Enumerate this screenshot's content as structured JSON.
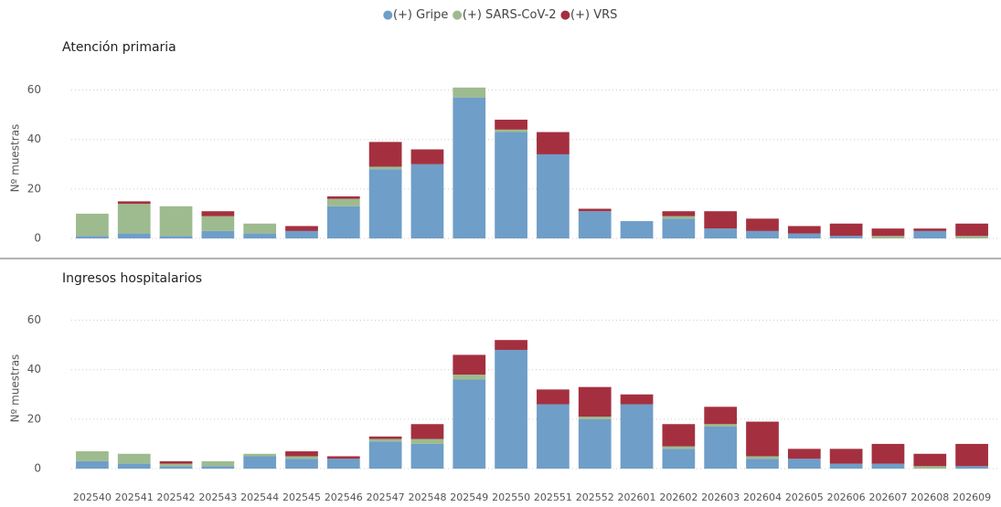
{
  "chart_data": [
    {
      "type": "bar",
      "stacked": true,
      "title": "Atención primaria",
      "ylabel": "Nº muestras",
      "ylim": [
        0,
        65
      ],
      "yticks": [
        0,
        20,
        40,
        60
      ],
      "grid": true,
      "series": [
        {
          "name": "(+) Gripe",
          "color": "#6f9ec8",
          "values": [
            1,
            2,
            1,
            3,
            2,
            3,
            13,
            28,
            30,
            57,
            43,
            34,
            11,
            7,
            8,
            4,
            3,
            2,
            1,
            0,
            3,
            0
          ]
        },
        {
          "name": "(+) SARS-CoV-2",
          "color": "#9dbb8e",
          "values": [
            9,
            12,
            12,
            6,
            4,
            0,
            3,
            1,
            0,
            4,
            1,
            0,
            0,
            0,
            1,
            0,
            0,
            0,
            0,
            1,
            0,
            1
          ]
        },
        {
          "name": "(+) VRS",
          "color": "#a4303f",
          "values": [
            0,
            1,
            0,
            2,
            0,
            2,
            1,
            10,
            6,
            0,
            4,
            9,
            1,
            0,
            2,
            7,
            5,
            3,
            5,
            3,
            1,
            5
          ]
        }
      ]
    },
    {
      "type": "bar",
      "stacked": true,
      "title": "Ingresos hospitalarios",
      "ylabel": "Nº muestras",
      "ylim": [
        0,
        65
      ],
      "yticks": [
        0,
        20,
        40,
        60
      ],
      "grid": true,
      "categories": [
        "202540",
        "202541",
        "202542",
        "202543",
        "202544",
        "202545",
        "202546",
        "202547",
        "202548",
        "202549",
        "202550",
        "202551",
        "202552",
        "202601",
        "202602",
        "202603",
        "202604",
        "202605",
        "202606",
        "202607",
        "202608",
        "202609"
      ],
      "series": [
        {
          "color": "#6f9ec8",
          "values": [
            3,
            2,
            1,
            1,
            5,
            4,
            4,
            11,
            10,
            36,
            48,
            26,
            20,
            26,
            8,
            17,
            4,
            4,
            2,
            2,
            0,
            1
          ]
        },
        {
          "color": "#9dbb8e",
          "values": [
            4,
            4,
            1,
            2,
            1,
            1,
            0,
            1,
            2,
            2,
            0,
            0,
            1,
            0,
            1,
            1,
            1,
            0,
            0,
            0,
            1,
            0
          ]
        },
        {
          "color": "#a4303f",
          "values": [
            0,
            0,
            1,
            0,
            0,
            2,
            1,
            1,
            6,
            8,
            4,
            6,
            12,
            4,
            9,
            7,
            14,
            4,
            6,
            8,
            5,
            9
          ]
        }
      ]
    }
  ]
}
